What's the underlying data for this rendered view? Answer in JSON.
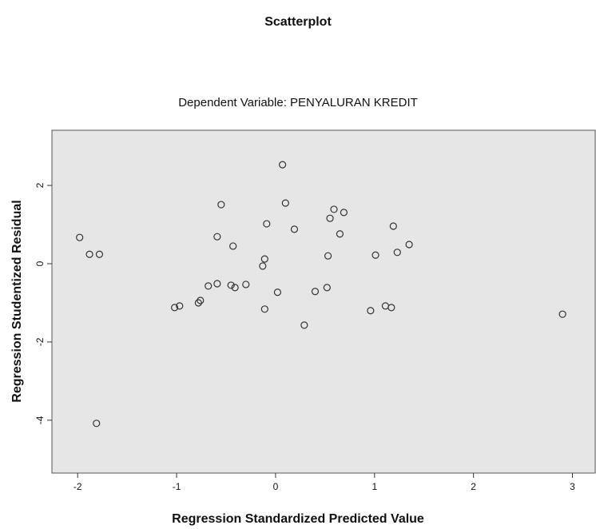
{
  "chart_data": {
    "type": "scatter",
    "title": "Scatterplot",
    "subtitle": "Dependent Variable: PENYALURAN KREDIT",
    "x_label": "Regression Standardized Predicted Value",
    "y_label": "Regression Studentized Residual",
    "color": "#333333",
    "background": "#e6e6e6",
    "xlim": [
      -2.26,
      3.23
    ],
    "xticks": [
      -2,
      -1,
      0,
      1,
      2,
      3
    ],
    "ylim": [
      -5.35,
      3.41
    ],
    "yticks": [
      -4,
      -2,
      0,
      2
    ],
    "x": [
      0.07,
      0.1,
      -0.55,
      0.59,
      0.69,
      0.55,
      -0.09,
      1.19,
      0.19,
      0.65,
      -0.59,
      -1.98,
      -0.43,
      1.35,
      -1.88,
      -1.78,
      1.23,
      0.53,
      1.01,
      -0.11,
      -0.13,
      -0.59,
      -0.68,
      -0.45,
      -0.41,
      -0.3,
      0.02,
      0.4,
      0.52,
      -0.76,
      -0.78,
      -0.97,
      -1.02,
      -0.11,
      1.11,
      1.17,
      0.96,
      0.29,
      2.9,
      -1.81
    ],
    "values": [
      2.53,
      1.55,
      1.51,
      1.39,
      1.31,
      1.16,
      1.02,
      0.96,
      0.88,
      0.76,
      0.69,
      0.67,
      0.45,
      0.49,
      0.24,
      0.24,
      0.29,
      0.2,
      0.22,
      0.12,
      -0.06,
      -0.51,
      -0.57,
      -0.55,
      -0.61,
      -0.53,
      -0.73,
      -0.71,
      -0.61,
      -0.94,
      -1.0,
      -1.08,
      -1.12,
      -1.16,
      -1.08,
      -1.12,
      -1.2,
      -1.57,
      -1.29,
      -4.08
    ]
  }
}
